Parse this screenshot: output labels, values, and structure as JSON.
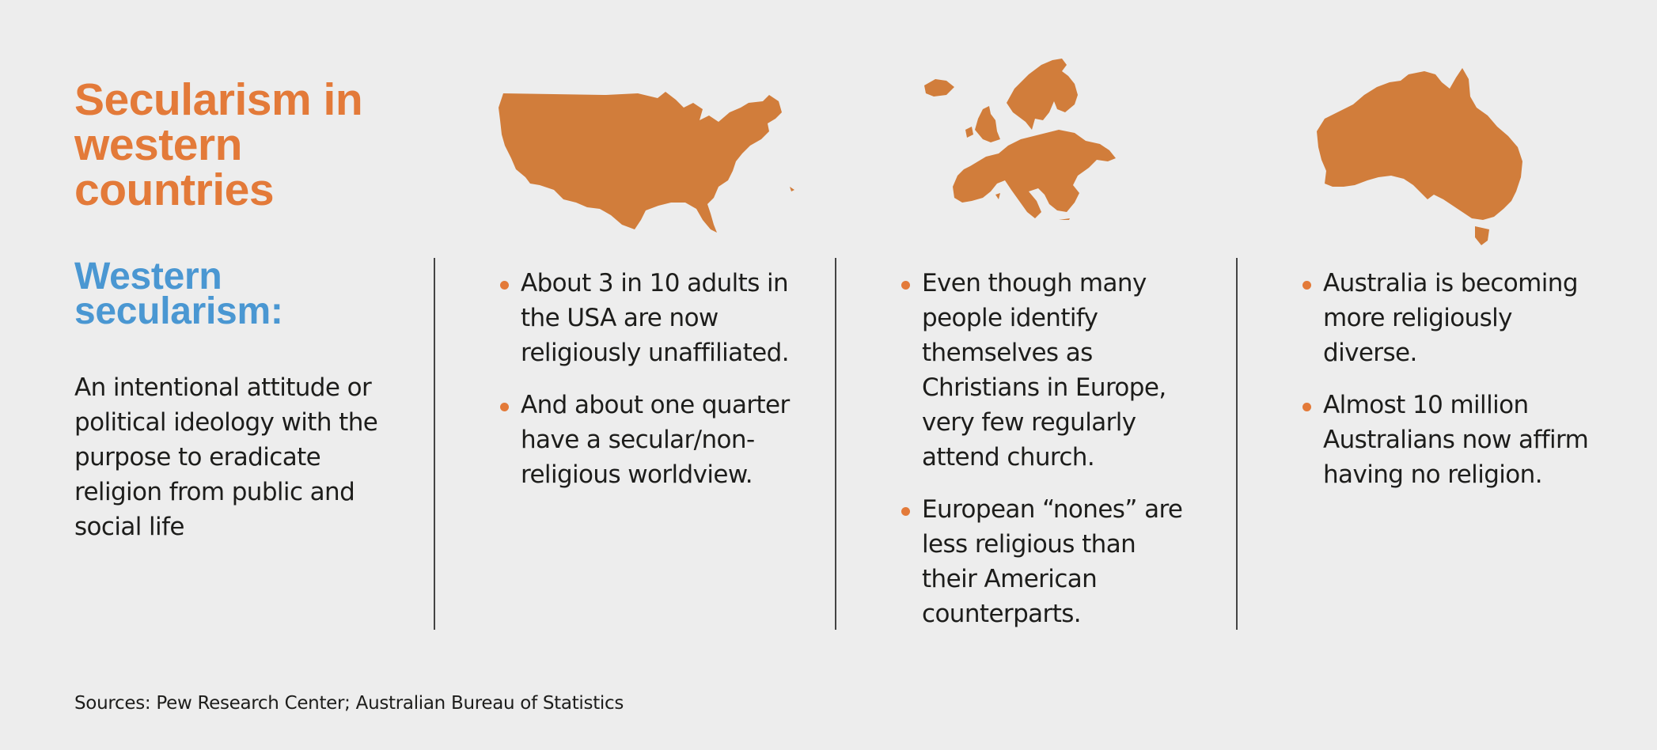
{
  "title": "Secularism in western countries",
  "subtitle": "Western secularism:",
  "definition": "An intentional attitude or political ideology with the purpose to eradicate religion from public and social life",
  "columns": [
    {
      "region": "USA",
      "icon": "usa-map-icon",
      "bullets": [
        "About 3 in 10 adults in the USA are now religiously unaffiliated.",
        "And about one quarter have a secular/non-religious worldview."
      ]
    },
    {
      "region": "Europe",
      "icon": "europe-map-icon",
      "bullets": [
        "Even though many people identify themselves as Christians in Europe, very few regularly attend church.",
        "European “nones” are less religious than their American counterparts."
      ]
    },
    {
      "region": "Australia",
      "icon": "australia-map-icon",
      "bullets": [
        "Australia is becoming more religiously diverse.",
        "Almost 10 million Australians now affirm having no religion."
      ]
    }
  ],
  "sources": "Sources: Pew Research Center; Australian Bureau of Statistics",
  "colors": {
    "background": "#ededed",
    "accent_orange": "#e37a39",
    "map_orange": "#d17d3b",
    "accent_blue": "#4a97d2",
    "text": "#1d1d1b"
  }
}
